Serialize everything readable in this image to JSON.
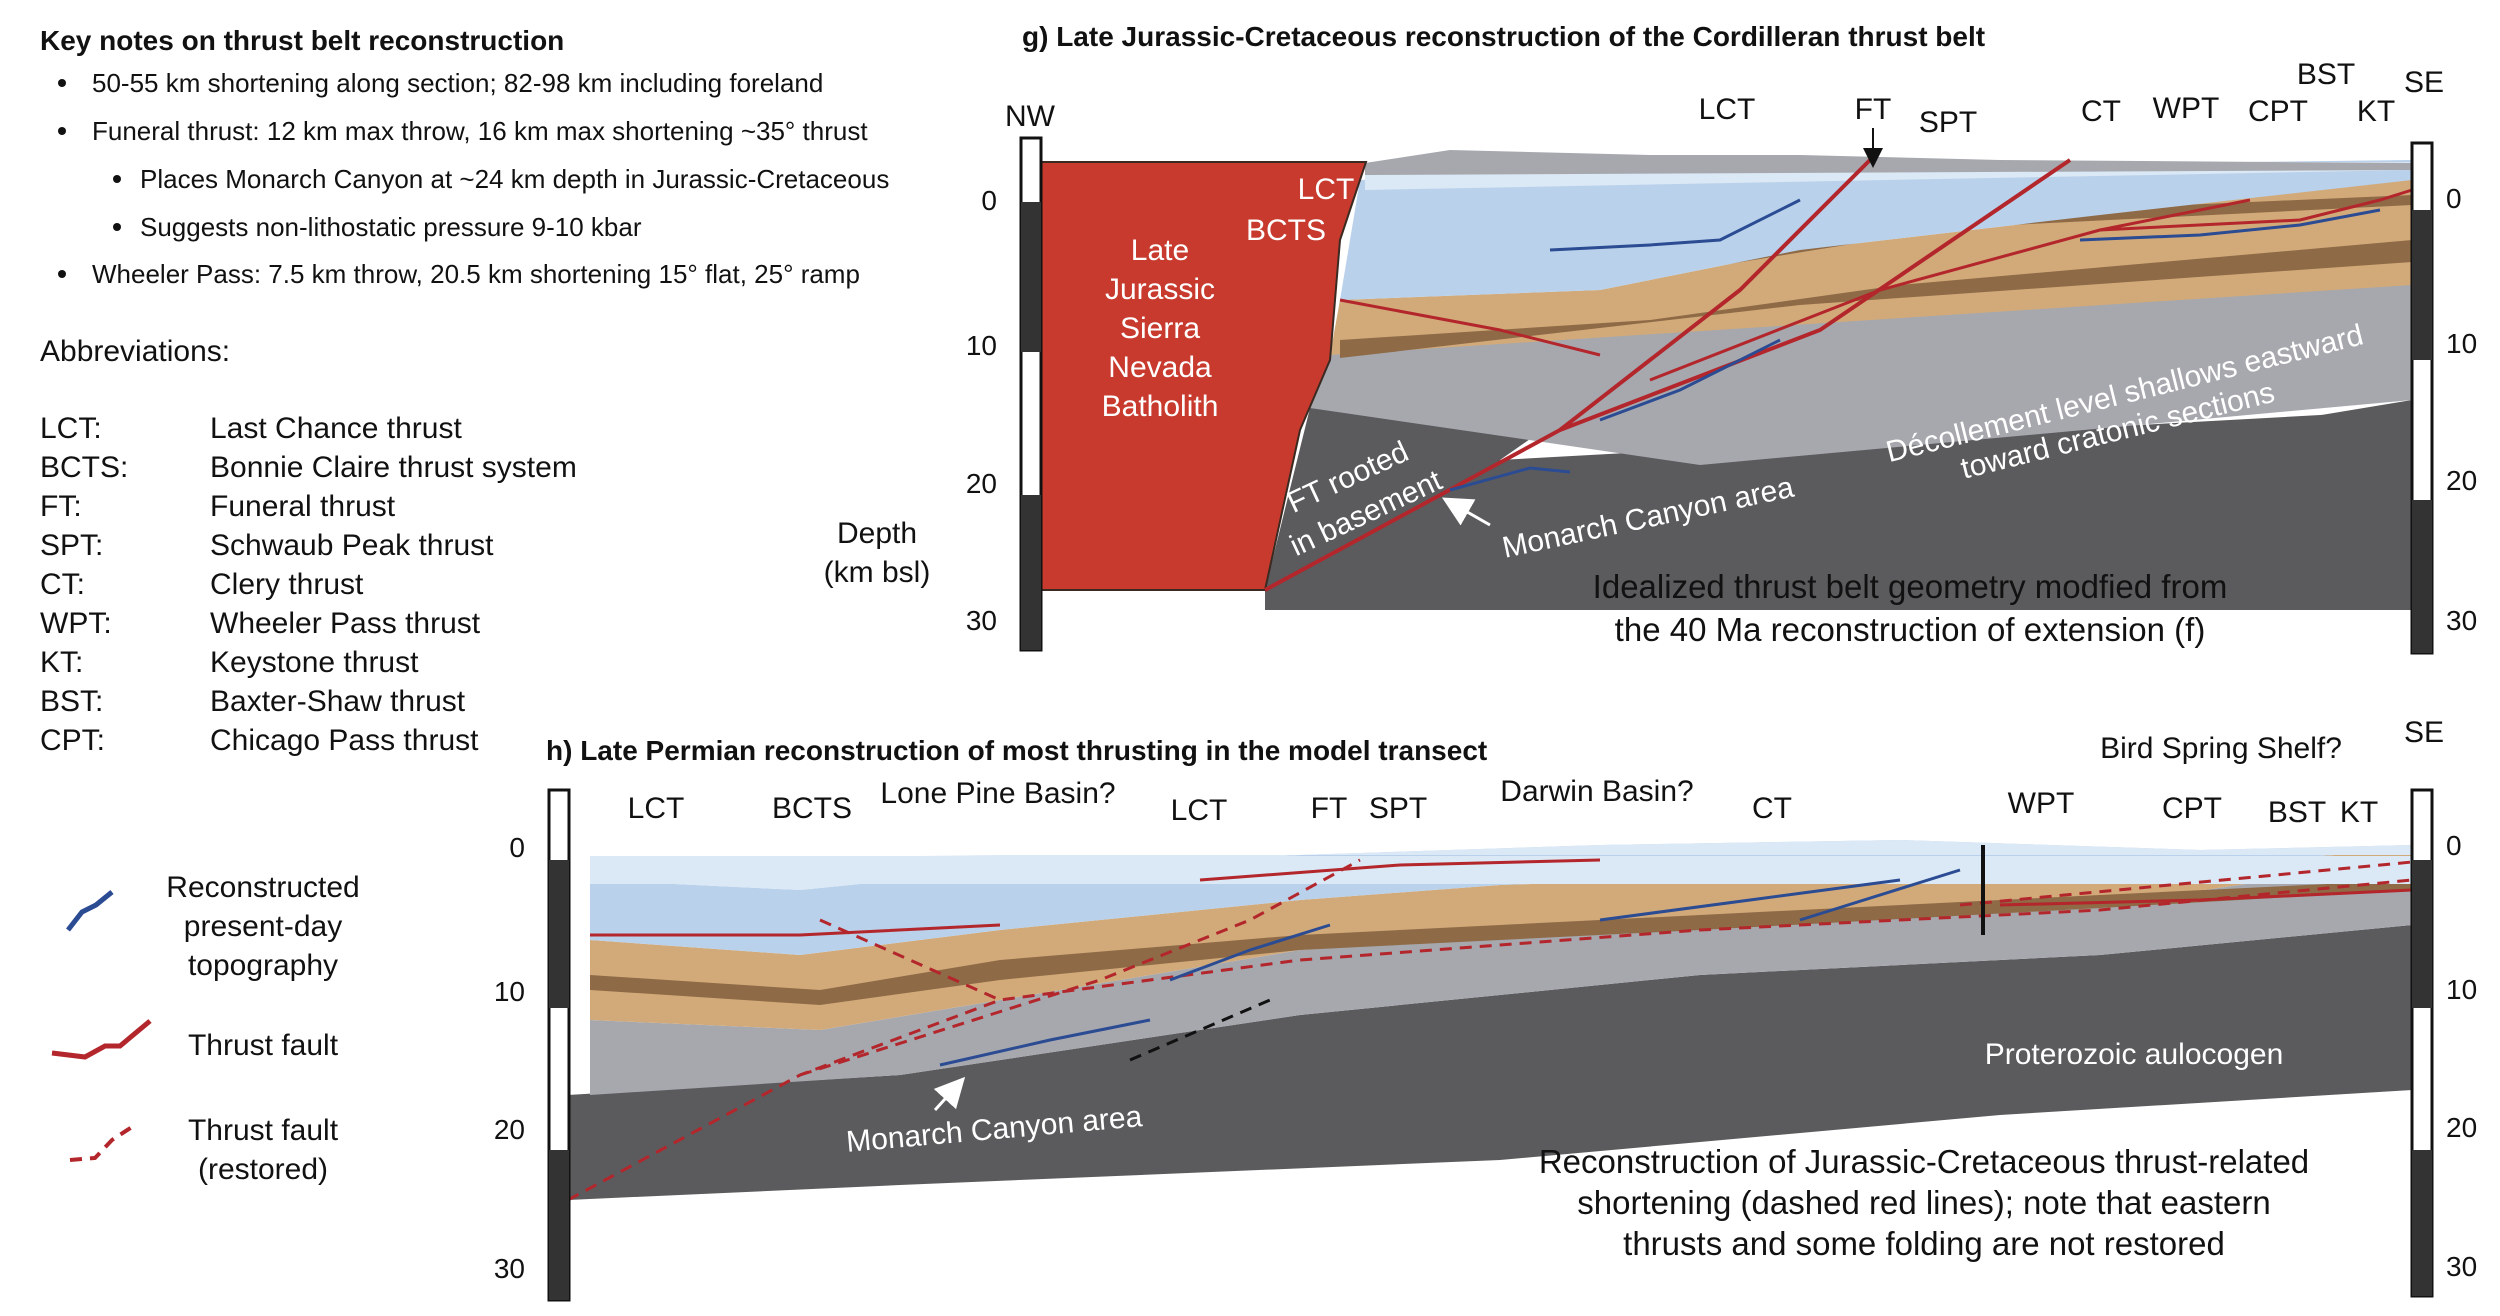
{
  "notes": {
    "title": "Key notes on thrust belt reconstruction",
    "items": [
      "50-55 km shortening along section; 82-98 km including foreland",
      "Funeral thrust: 12 km max throw, 16 km max shortening ~35° thrust",
      "Places Monarch Canyon at ~24 km depth in Jurassic-Cretaceous",
      "Suggests non-lithostatic pressure 9-10 kbar",
      "Wheeler Pass: 7.5 km throw, 20.5 km shortening 15° flat, 25° ramp"
    ]
  },
  "abbreviations": {
    "title": "Abbreviations:",
    "list": [
      {
        "abbr": "LCT:",
        "name": "Last Chance thrust"
      },
      {
        "abbr": "BCTS:",
        "name": "Bonnie Claire thrust system"
      },
      {
        "abbr": "FT:",
        "name": "Funeral thrust"
      },
      {
        "abbr": "SPT:",
        "name": "Schwaub Peak thrust"
      },
      {
        "abbr": "CT:",
        "name": "Clery thrust"
      },
      {
        "abbr": "WPT:",
        "name": "Wheeler Pass thrust"
      },
      {
        "abbr": "KT:",
        "name": "Keystone thrust"
      },
      {
        "abbr": "BST:",
        "name": "Baxter-Shaw thrust"
      },
      {
        "abbr": "CPT:",
        "name": "Chicago Pass thrust"
      }
    ]
  },
  "legend": {
    "topography_line1": "Reconstructed",
    "topography_line2": "present-day",
    "topography_line3": "topography",
    "thrust": "Thrust fault",
    "restored_line1": "Thrust fault",
    "restored_line2": "(restored)"
  },
  "depth_axis": {
    "label_line1": "Depth",
    "label_line2": "(km bsl)"
  },
  "colors": {
    "thrust_red": "#b3262b",
    "topo_blue": "#2b4b92",
    "batholith": "#c83a2e",
    "basement": "#5b5b5d",
    "tan": "#d2aa7a",
    "brown": "#8e6a46",
    "light_blue": "#b9d1ea",
    "pale_blue": "#dbe8f5",
    "gray": "#a6a8ae"
  },
  "panel_g": {
    "title": "g) Late Jurassic-Cretaceous reconstruction of the Cordilleran thrust belt",
    "nw": "NW",
    "se": "SE",
    "ticks_left": [
      "0",
      "10",
      "20",
      "30"
    ],
    "ticks_right": [
      "0",
      "10",
      "20",
      "30"
    ],
    "fault_labels": {
      "lct": "LCT",
      "ft": "FT",
      "spt": "SPT",
      "ct": "CT",
      "wpt": "WPT",
      "cpt": "CPT",
      "bst": "BST",
      "kt": "KT"
    },
    "inner_lct": "LCT",
    "inner_bcts": "BCTS",
    "batholith": [
      "Late",
      "Jurassic",
      "Sierra",
      "Nevada",
      "Batholith"
    ],
    "ft_rooted_line1": "FT rooted",
    "ft_rooted_line2": "in basement",
    "monarch": "Monarch Canyon area",
    "decollement_line1": "Décollement level shallows eastward",
    "decollement_line2": "toward cratonic sections",
    "caption_line1": "Idealized thrust belt geometry modfied from",
    "caption_line2": "the 40 Ma reconstruction of extension (f)"
  },
  "panel_h": {
    "title": "h) Late Permian reconstruction of most thrusting in the model transect",
    "se": "SE",
    "ticks_left": [
      "0",
      "10",
      "20",
      "30"
    ],
    "ticks_right": [
      "0",
      "10",
      "20",
      "30"
    ],
    "fault_labels": {
      "lct1": "LCT",
      "bcts": "BCTS",
      "lct2": "LCT",
      "ft": "FT",
      "spt": "SPT",
      "ct": "CT",
      "wpt": "WPT",
      "cpt": "CPT",
      "bst": "BST",
      "kt": "KT"
    },
    "lone_pine": "Lone Pine Basin?",
    "darwin": "Darwin Basin?",
    "bird_spring": "Bird Spring Shelf?",
    "aulocogen": "Proterozoic aulocogen",
    "monarch": "Monarch Canyon area",
    "caption_line1": "Reconstruction of Jurassic-Cretaceous thrust-related",
    "caption_line2": "shortening (dashed red lines); note that eastern",
    "caption_line3": "thrusts and some folding are not restored"
  }
}
